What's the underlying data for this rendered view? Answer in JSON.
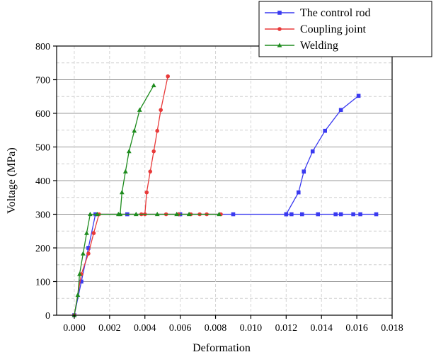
{
  "chart_data": {
    "type": "line",
    "title": "",
    "xlabel": "Deformation",
    "ylabel": "Voltage (MPa)",
    "xlim": [
      -0.001,
      0.018
    ],
    "ylim": [
      0,
      800
    ],
    "xticks": [
      "0.000",
      "0.002",
      "0.004",
      "0.006",
      "0.008",
      "0.010",
      "0.012",
      "0.014",
      "0.016",
      "0.018"
    ],
    "yticks": [
      "0",
      "100",
      "200",
      "300",
      "400",
      "500",
      "600",
      "700",
      "800"
    ],
    "grid": true,
    "legend_position": "top-right",
    "series": [
      {
        "name": "The control rod",
        "color": "#3a3af0",
        "marker": "square",
        "points": [
          [
            0.0,
            0
          ],
          [
            0.0004,
            100
          ],
          [
            0.0008,
            200
          ],
          [
            0.0012,
            300
          ],
          [
            0.003,
            300
          ],
          [
            0.006,
            300
          ],
          [
            0.009,
            300
          ],
          [
            0.012,
            300
          ],
          [
            0.0123,
            300
          ],
          [
            0.0129,
            300
          ],
          [
            0.0138,
            300
          ],
          [
            0.0148,
            300
          ],
          [
            0.0151,
            300
          ],
          [
            0.0158,
            300
          ],
          [
            0.0162,
            300
          ],
          [
            0.0171,
            300
          ],
          [
            0.012,
            300
          ],
          [
            0.0127,
            365
          ],
          [
            0.013,
            427
          ],
          [
            0.0135,
            487
          ],
          [
            0.0142,
            548
          ],
          [
            0.0151,
            610
          ],
          [
            0.0161,
            652
          ]
        ]
      },
      {
        "name": "Coupling joint",
        "color": "#e83a3a",
        "marker": "circle",
        "points": [
          [
            0.0,
            0
          ],
          [
            0.0004,
            122
          ],
          [
            0.0008,
            183
          ],
          [
            0.0011,
            244
          ],
          [
            0.0014,
            300
          ],
          [
            0.0038,
            300
          ],
          [
            0.0052,
            300
          ],
          [
            0.0059,
            300
          ],
          [
            0.0066,
            300
          ],
          [
            0.0071,
            300
          ],
          [
            0.0075,
            300
          ],
          [
            0.0083,
            300
          ],
          [
            0.004,
            300
          ],
          [
            0.0041,
            365
          ],
          [
            0.0043,
            427
          ],
          [
            0.0045,
            487
          ],
          [
            0.0047,
            548
          ],
          [
            0.0049,
            610
          ],
          [
            0.0053,
            710
          ]
        ]
      },
      {
        "name": "Welding",
        "color": "#1e8c1e",
        "marker": "triangle",
        "points": [
          [
            0.0,
            0
          ],
          [
            0.0002,
            60
          ],
          [
            0.0003,
            122
          ],
          [
            0.0005,
            183
          ],
          [
            0.0007,
            244
          ],
          [
            0.0009,
            300
          ],
          [
            0.0013,
            300
          ],
          [
            0.0025,
            300
          ],
          [
            0.0035,
            300
          ],
          [
            0.0047,
            300
          ],
          [
            0.0058,
            300
          ],
          [
            0.0065,
            300
          ],
          [
            0.0082,
            300
          ],
          [
            0.0026,
            300
          ],
          [
            0.0027,
            365
          ],
          [
            0.0029,
            427
          ],
          [
            0.0031,
            487
          ],
          [
            0.0034,
            548
          ],
          [
            0.0037,
            610
          ],
          [
            0.0045,
            683
          ]
        ]
      }
    ]
  }
}
